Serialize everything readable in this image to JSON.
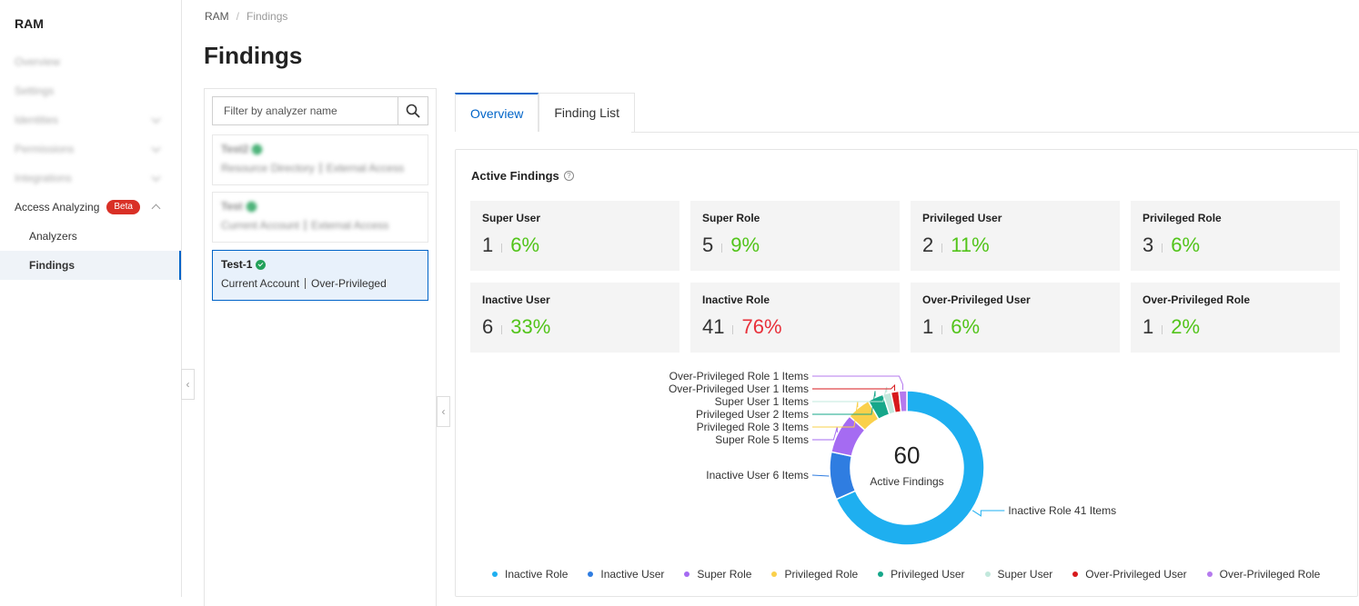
{
  "sidebar": {
    "title": "RAM",
    "items": [
      {
        "label": "Overview",
        "blurred": true,
        "chevron": ""
      },
      {
        "label": "Settings",
        "blurred": true,
        "chevron": ""
      },
      {
        "label": "Identities",
        "blurred": true,
        "chevron": "down"
      },
      {
        "label": "Permissions",
        "blurred": true,
        "chevron": "down"
      },
      {
        "label": "Integrations",
        "blurred": true,
        "chevron": "down"
      },
      {
        "label": "Access Analyzing",
        "badge": "Beta",
        "chevron": "up"
      },
      {
        "label": "Analyzers",
        "sub": true
      },
      {
        "label": "Findings",
        "sub": true,
        "active": true
      }
    ]
  },
  "breadcrumb": {
    "root": "RAM",
    "separator": "/",
    "current": "Findings"
  },
  "page": {
    "title": "Findings"
  },
  "filter": {
    "placeholder": "Filter by analyzer name",
    "value": ""
  },
  "analyzers": [
    {
      "name": "Test2",
      "scope": "Resource Directory",
      "type": "External Access",
      "blurred": true
    },
    {
      "name": "Test",
      "scope": "Current Account",
      "type": "External Access",
      "blurred": true
    },
    {
      "name": "Test-1",
      "scope": "Current Account",
      "type": "Over-Privileged",
      "selected": true
    }
  ],
  "tabs": [
    {
      "label": "Overview",
      "active": true
    },
    {
      "label": "Finding List"
    }
  ],
  "active_findings": {
    "title": "Active Findings",
    "stats": [
      {
        "label": "Super User",
        "count": "1",
        "percent": "6%",
        "color": "#52c41a"
      },
      {
        "label": "Super Role",
        "count": "5",
        "percent": "9%",
        "color": "#52c41a"
      },
      {
        "label": "Privileged User",
        "count": "2",
        "percent": "11%",
        "color": "#52c41a"
      },
      {
        "label": "Privileged Role",
        "count": "3",
        "percent": "6%",
        "color": "#52c41a"
      },
      {
        "label": "Inactive User",
        "count": "6",
        "percent": "33%",
        "color": "#52c41a"
      },
      {
        "label": "Inactive Role",
        "count": "41",
        "percent": "76%",
        "color": "#e8303a"
      },
      {
        "label": "Over-Privileged User",
        "count": "1",
        "percent": "6%",
        "color": "#52c41a"
      },
      {
        "label": "Over-Privileged Role",
        "count": "1",
        "percent": "2%",
        "color": "#52c41a"
      }
    ]
  },
  "chart_data": {
    "type": "pie",
    "center_value": "60",
    "center_label": "Active Findings",
    "slices": [
      {
        "name": "Inactive Role",
        "value": 41,
        "label": "Inactive Role 41 Items",
        "color": "#1eaff0"
      },
      {
        "name": "Inactive User",
        "value": 6,
        "label": "Inactive User 6 Items",
        "color": "#2f7de1"
      },
      {
        "name": "Super Role",
        "value": 5,
        "label": "Super Role 5 Items",
        "color": "#a56bf2"
      },
      {
        "name": "Privileged Role",
        "value": 3,
        "label": "Privileged Role 3 Items",
        "color": "#fad04b"
      },
      {
        "name": "Privileged User",
        "value": 2,
        "label": "Privileged User 2 Items",
        "color": "#16a78a"
      },
      {
        "name": "Super User",
        "value": 1,
        "label": "Super User 1 Items",
        "color": "#c2e8dc"
      },
      {
        "name": "Over-Privileged User",
        "value": 1,
        "label": "Over-Privileged User 1 Items",
        "color": "#d7191c"
      },
      {
        "name": "Over-Privileged Role",
        "value": 1,
        "label": "Over-Privileged Role 1 Items",
        "color": "#b57aee"
      }
    ],
    "legend_position": "bottom"
  }
}
